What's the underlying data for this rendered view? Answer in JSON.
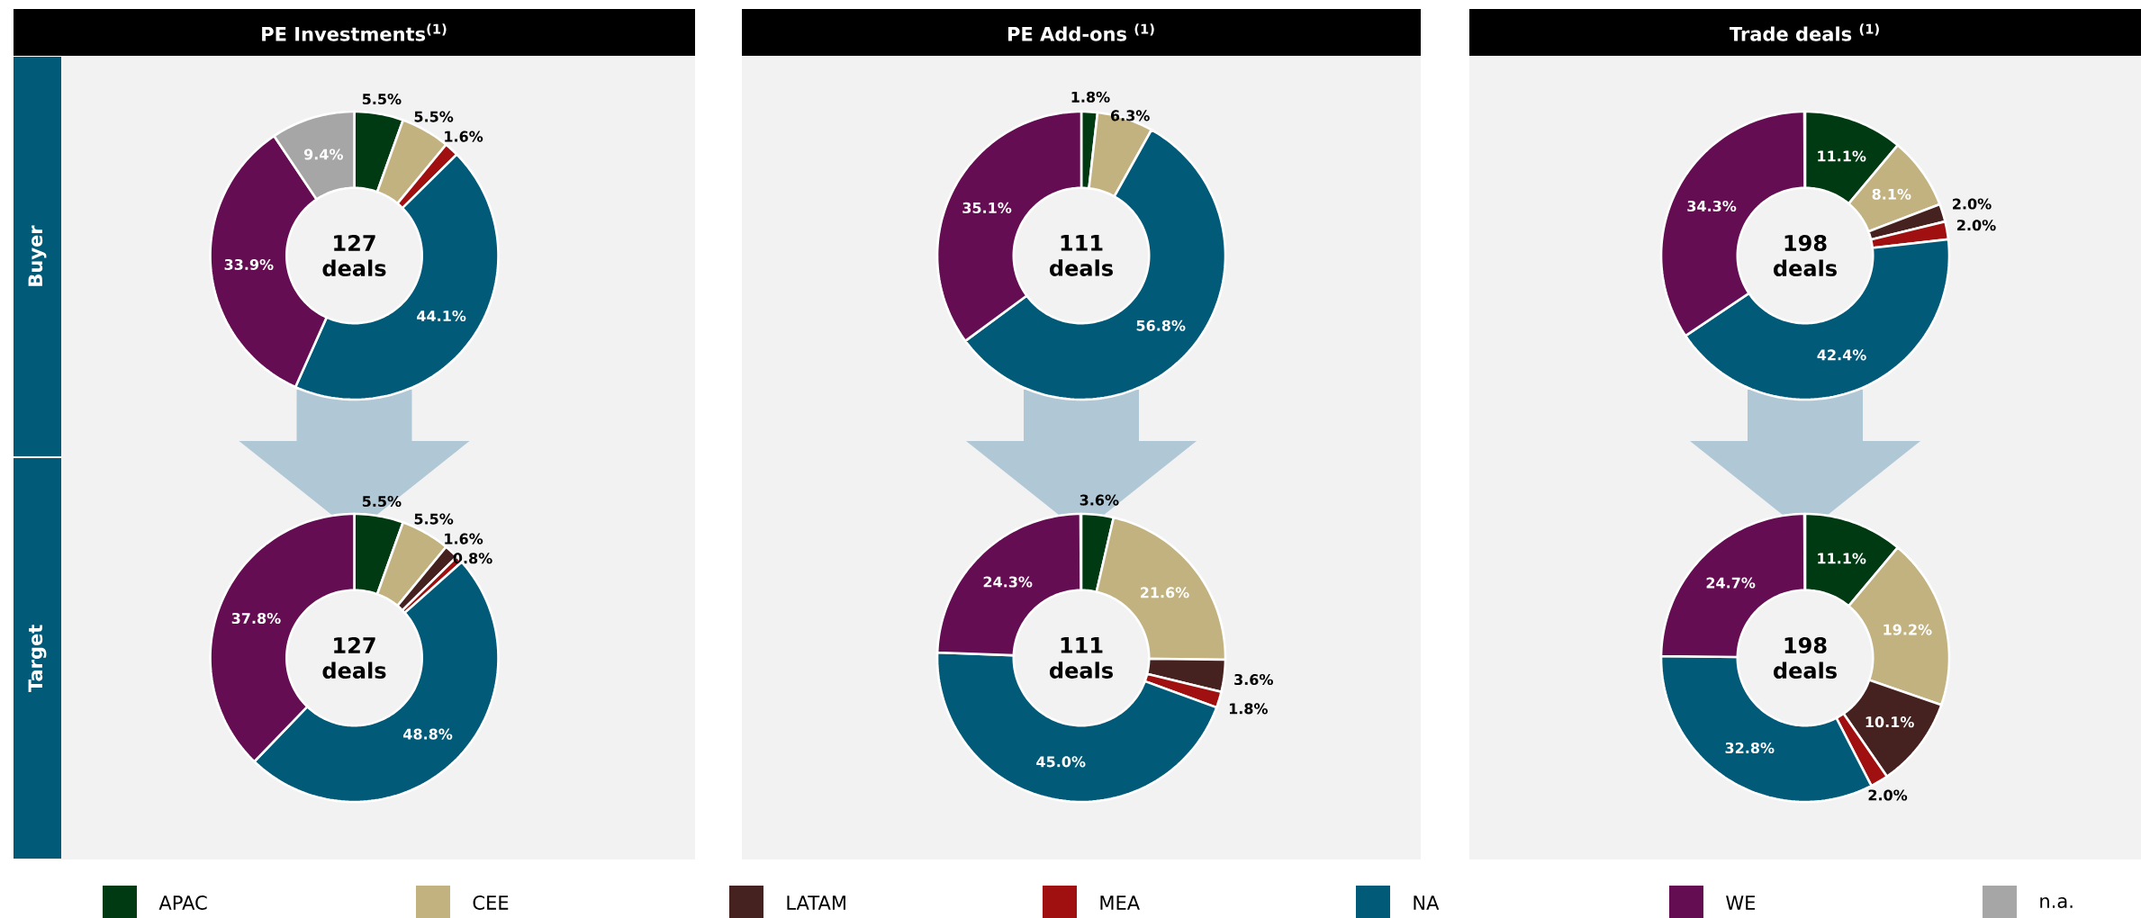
{
  "chart_data": [
    {
      "type": "donut",
      "title": "PE Investments$^{(1)}$",
      "ylabel": "Buyer",
      "annotations": [
        "127 deals"
      ],
      "legend": "bottom",
      "categories": [
        "APAC",
        "CEE",
        "LATAM",
        "MEA",
        "NA",
        "WE",
        "n.a."
      ],
      "colors": [
        "#003a12",
        "#c2b280",
        "#45221f",
        "#a01010",
        "#005a78",
        "#650d52",
        "#a6a6a6"
      ],
      "values": [
        5.5,
        5.5,
        0,
        1.6,
        44.1,
        33.9,
        9.4
      ],
      "value_labels": [
        "5.5%",
        "5.5%",
        null,
        "1.6%",
        "44.1%",
        "33.9%",
        "9.4%"
      ]
    },
    {
      "type": "donut",
      "ylabel": "Target",
      "annotations": [
        "127 deals"
      ],
      "categories": [
        null,
        null,
        null,
        null,
        null,
        null,
        null
      ],
      "colors": [
        "#003a12",
        "#c2b280",
        "#45221f",
        "#a01010",
        "#005a78",
        "#650d52",
        "#a6a6a6"
      ],
      "values": [
        5.5,
        5.5,
        1.6,
        0.8,
        48.8,
        37.8,
        0
      ],
      "value_labels": [
        "5.5%",
        "5.5%",
        "1.6%",
        "0.8%",
        "48.8%",
        "37.8%",
        null
      ]
    },
    {
      "type": "donut",
      "title": "PE Add-ons $^{(1)}$",
      "annotations": [
        "111 deals"
      ],
      "categories": [
        null,
        null,
        null,
        null,
        null,
        null,
        null
      ],
      "colors": [
        "#003a12",
        "#c2b280",
        "#45221f",
        "#a01010",
        "#005a78",
        "#650d52",
        "#a6a6a6"
      ],
      "values": [
        1.8,
        6.3,
        0,
        0,
        56.8,
        35.1,
        0
      ],
      "value_labels": [
        "1.8%",
        "6.3%",
        null,
        null,
        "56.8%",
        "35.1%",
        null
      ]
    },
    {
      "type": "donut",
      "annotations": [
        "111 deals"
      ],
      "categories": [
        null,
        null,
        null,
        null,
        null,
        null,
        null
      ],
      "colors": [
        "#003a12",
        "#c2b280",
        "#45221f",
        "#a01010",
        "#005a78",
        "#650d52",
        "#a6a6a6"
      ],
      "values": [
        3.6,
        21.6,
        3.6,
        1.8,
        45.0,
        24.3,
        0
      ],
      "value_labels": [
        "3.6%",
        "21.6%",
        "3.6%",
        "1.8%",
        "45.0%",
        "24.3%",
        null
      ]
    },
    {
      "type": "donut",
      "title": "Trade deals $^{(1)}$",
      "annotations": [
        "198 deals"
      ],
      "categories": [
        null,
        null,
        null,
        null,
        null,
        null,
        null
      ],
      "colors": [
        "#003a12",
        "#c2b280",
        "#45221f",
        "#a01010",
        "#005a78",
        "#650d52",
        "#a6a6a6"
      ],
      "values": [
        11.1,
        8.1,
        2.0,
        2.0,
        42.4,
        34.3,
        0
      ],
      "value_labels": [
        "11.1%",
        "8.1%",
        "2.0%",
        "2.0%",
        "42.4%",
        "34.3%",
        null
      ]
    },
    {
      "type": "donut",
      "annotations": [
        "198 deals"
      ],
      "categories": [
        null,
        null,
        null,
        null,
        null,
        null,
        null
      ],
      "colors": [
        "#003a12",
        "#c2b280",
        "#45221f",
        "#a01010",
        "#005a78",
        "#650d52",
        "#a6a6a6"
      ],
      "values": [
        11.1,
        19.2,
        10.1,
        2.0,
        32.8,
        24.7,
        0
      ],
      "value_labels": [
        "11.1%",
        "19.2%",
        "10.1%",
        "2.0%",
        "32.8%",
        "24.7%",
        null
      ]
    }
  ]
}
